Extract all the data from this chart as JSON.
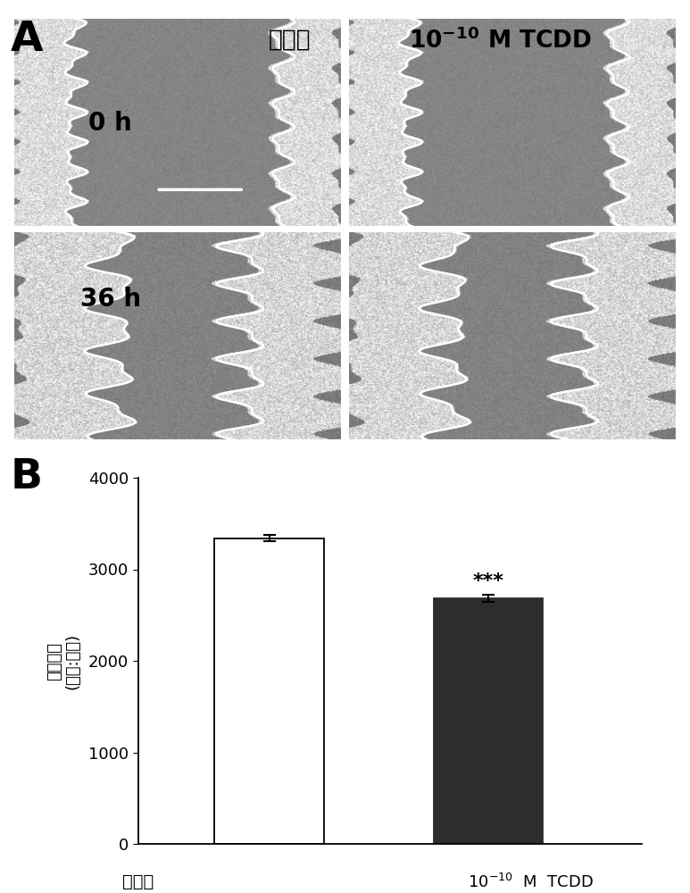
{
  "panel_A_label": "A",
  "panel_B_label": "B",
  "bar_values": [
    3340,
    2680
  ],
  "bar_errors": [
    35,
    40
  ],
  "bar_colors": [
    "white",
    "#2d2d2d"
  ],
  "bar_edge_colors": [
    "black",
    "#2d2d2d"
  ],
  "ylim": [
    0,
    4000
  ],
  "yticks": [
    0,
    1000,
    2000,
    3000,
    4000
  ],
  "significance": "***",
  "sig_fontsize": 16,
  "bar_width": 0.5,
  "figure_bg": "white"
}
